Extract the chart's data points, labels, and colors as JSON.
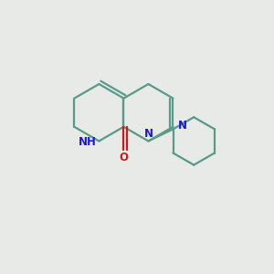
{
  "background_color": "#e8eae8",
  "bond_color": "#5a9a8a",
  "bond_width": 1.6,
  "atom_colors": {
    "N": "#1a1acc",
    "O": "#cc1a1a",
    "NH": "#1a1acc"
  },
  "figsize": [
    3.0,
    3.0
  ],
  "dpi": 100,
  "xlim": [
    0,
    10
  ],
  "ylim": [
    0,
    10
  ],
  "font_size": 8.5
}
